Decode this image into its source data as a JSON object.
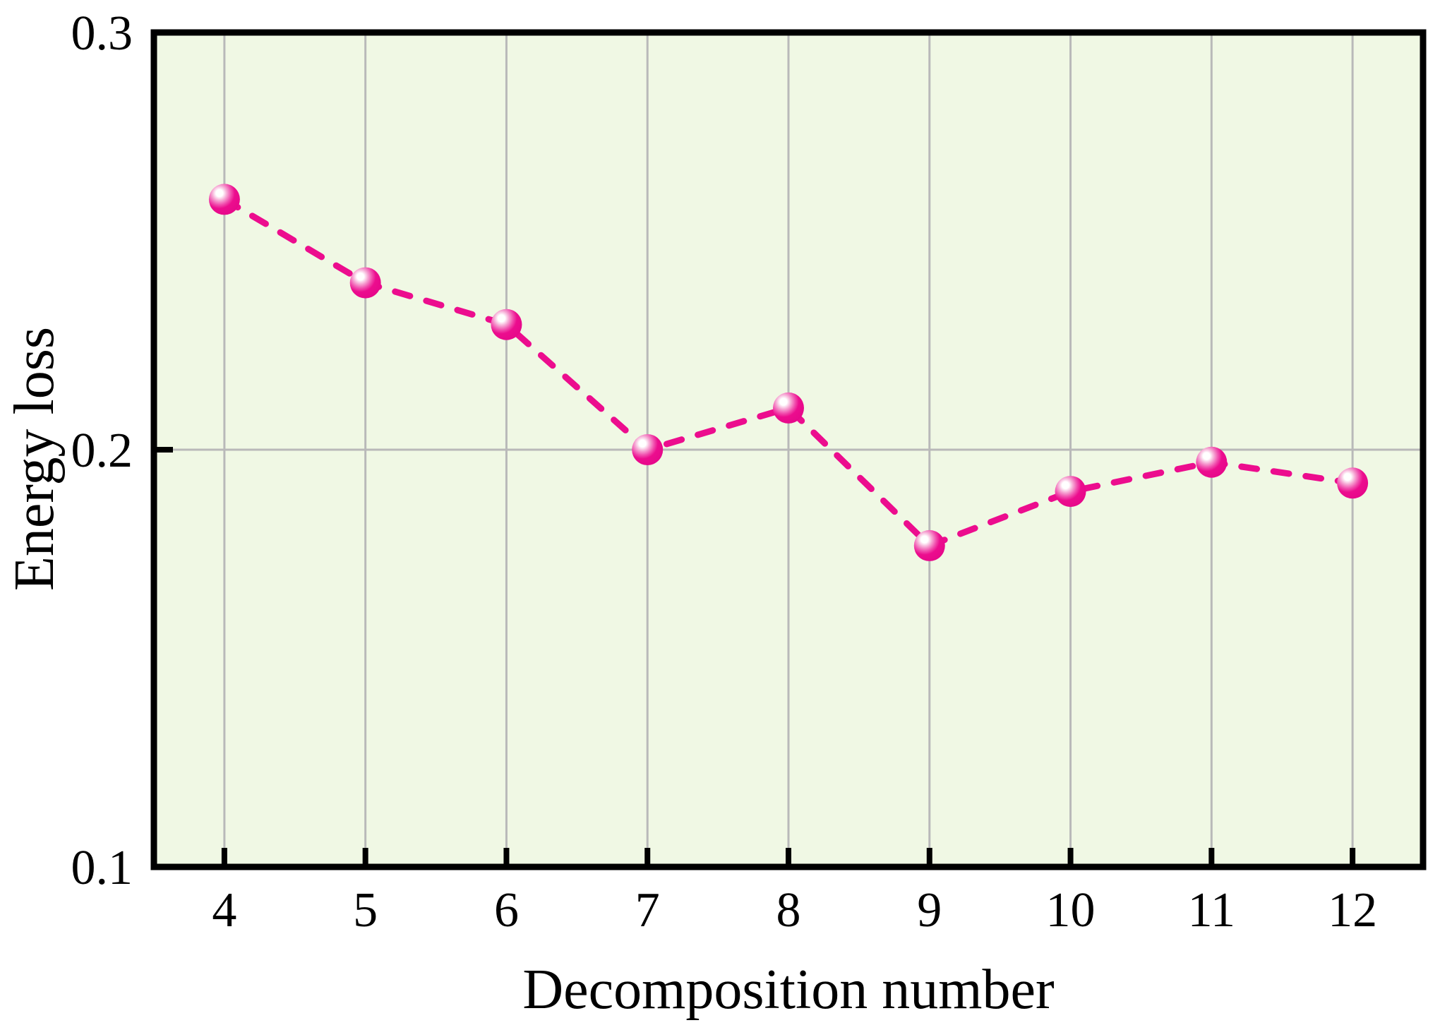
{
  "chart_data": {
    "type": "line",
    "title": "",
    "xlabel": "Decomposition number",
    "ylabel": "Energy loss",
    "x": [
      4,
      5,
      6,
      7,
      8,
      9,
      10,
      11,
      12
    ],
    "series": [
      {
        "name": "Energy loss",
        "values": [
          0.26,
          0.24,
          0.23,
          0.2,
          0.21,
          0.177,
          0.19,
          0.197,
          0.192
        ],
        "line_style": "dashed",
        "marker": "sphere"
      }
    ],
    "xlim": [
      3.5,
      12.5
    ],
    "ylim": [
      0.1,
      0.3
    ],
    "xticks": [
      4,
      5,
      6,
      7,
      8,
      9,
      10,
      11,
      12
    ],
    "xtick_labels": [
      "4",
      "5",
      "6",
      "7",
      "8",
      "9",
      "10",
      "11",
      "12"
    ],
    "yticks": [
      0.1,
      0.2,
      0.3
    ],
    "ytick_labels": [
      "0.1",
      "0.2",
      "0.3"
    ],
    "grid": true,
    "legend": "none"
  },
  "colors": {
    "line": "#ec0d8e",
    "marker": "#ec0d8e",
    "marker_edge": "#e6088a",
    "marker_mid": "#f6a8d4",
    "marker_highlight": "#ffffff",
    "plot_bg": "#f0f8e4",
    "grid": "#b9b9b9",
    "axis": "#000000",
    "text": "#000000",
    "page_bg": "#ffffff"
  }
}
